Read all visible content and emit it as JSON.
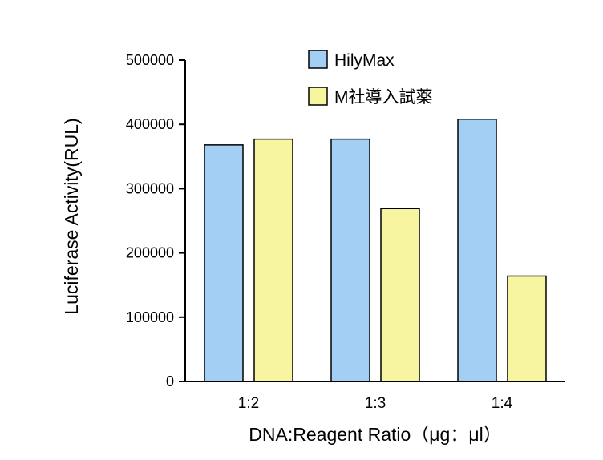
{
  "chart_data": {
    "type": "bar",
    "categories": [
      "1:2",
      "1:3",
      "1:4"
    ],
    "series": [
      {
        "name": "HilyMax",
        "values": [
          368000,
          377000,
          408000
        ],
        "color": "#a4cff5"
      },
      {
        "name": "M社導入試薬",
        "values": [
          377000,
          269000,
          164000
        ],
        "color": "#f7f5a0"
      }
    ],
    "ylim": [
      0,
      500000
    ],
    "yticks": [
      0,
      100000,
      200000,
      300000,
      400000,
      500000
    ],
    "ytick_labels": [
      "0",
      "100000",
      "200000",
      "300000",
      "400000",
      "500000"
    ],
    "xlabel": "DNA:Reagent Ratio（μg：μl）",
    "ylabel": "Luciferase Activity(RUL)",
    "legend_position": "top-right",
    "grid": false
  }
}
